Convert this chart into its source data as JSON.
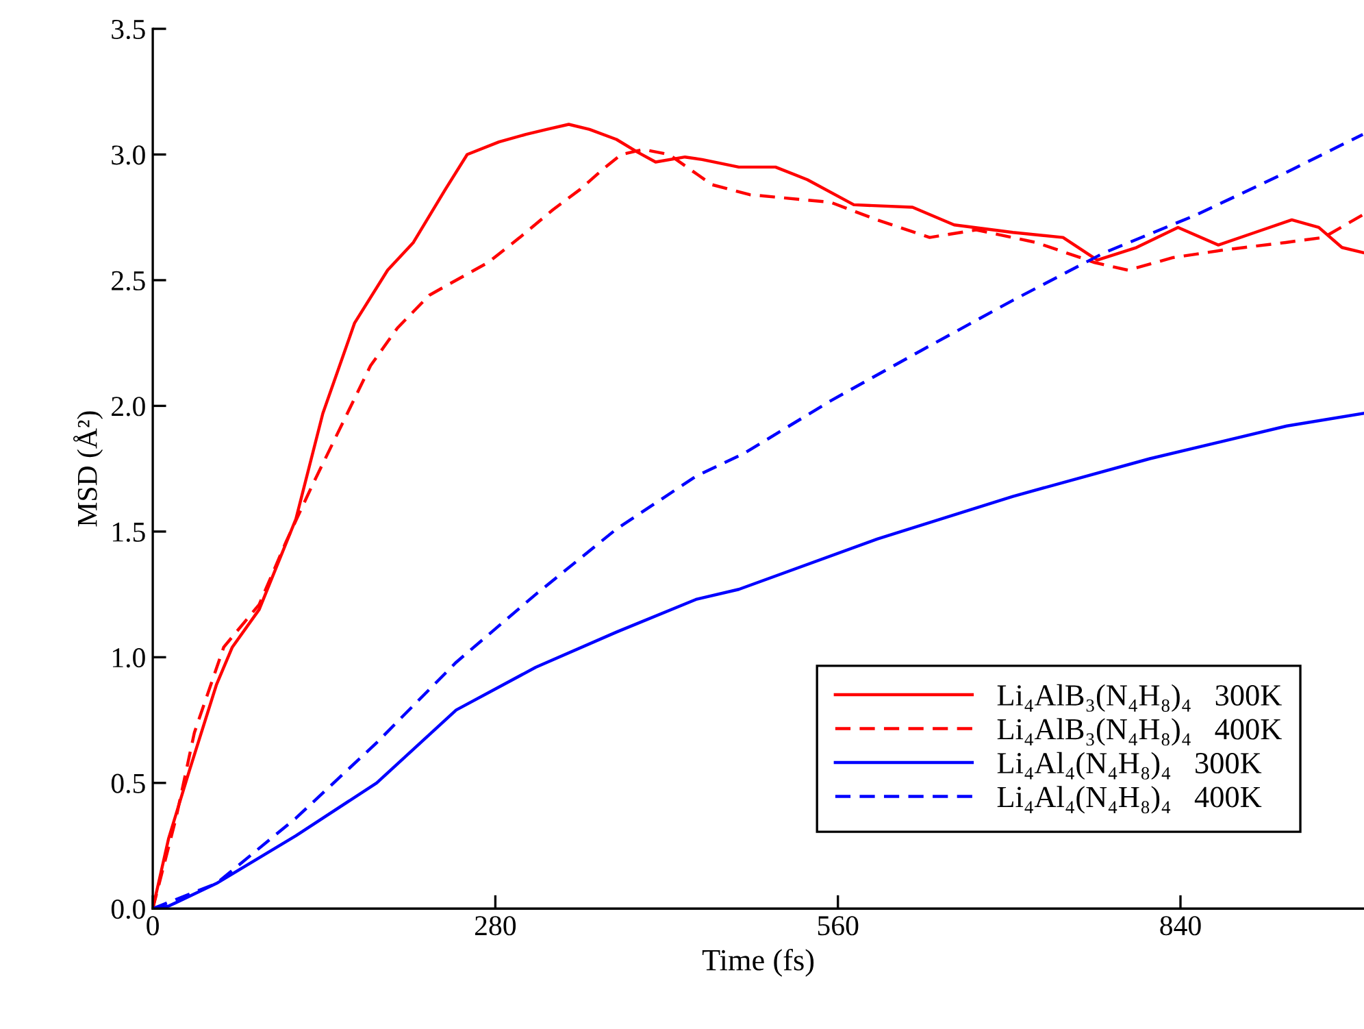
{
  "chart_data": {
    "type": "line",
    "xlabel": "Time (fs)",
    "ylabel": "MSD (Å²)",
    "xlim": [
      0,
      990
    ],
    "ylim": [
      0,
      3.5
    ],
    "xticks": [
      0,
      280,
      560,
      840
    ],
    "yticks": [
      {
        "value": 0,
        "label": "0.0"
      },
      {
        "value": 0.5,
        "label": "0.5"
      },
      {
        "value": 1,
        "label": "1.0"
      },
      {
        "value": 1.5,
        "label": "1.5"
      },
      {
        "value": 2,
        "label": "2.0"
      },
      {
        "value": 2.5,
        "label": "2.5"
      },
      {
        "value": 3,
        "label": "3.0"
      },
      {
        "value": 3.5,
        "label": "3.5"
      }
    ],
    "grid": false,
    "legend": "bottom right",
    "marker": "none",
    "series": [
      {
        "name": "Li₄AlB₃(N₄H₈)₄   300K",
        "color": "#ff0000",
        "line_style": "solid",
        "x": [
          0,
          13,
          30,
          52,
          65,
          87,
          117,
          139,
          165,
          192,
          213,
          239,
          257,
          283,
          305,
          322,
          340,
          357,
          379,
          396,
          411,
          435,
          449,
          479,
          509,
          535,
          573,
          621,
          655,
          703,
          744,
          772,
          804,
          838,
          871,
          901,
          931,
          953,
          972,
          989
        ],
        "values": [
          0,
          0.28,
          0.55,
          0.89,
          1.04,
          1.19,
          1.55,
          1.97,
          2.33,
          2.54,
          2.65,
          2.86,
          3.0,
          3.05,
          3.08,
          3.1,
          3.12,
          3.1,
          3.06,
          3.01,
          2.97,
          2.99,
          2.98,
          2.95,
          2.95,
          2.9,
          2.8,
          2.79,
          2.72,
          2.69,
          2.67,
          2.58,
          2.63,
          2.71,
          2.64,
          2.69,
          2.74,
          2.71,
          2.63,
          2.61
        ]
      },
      {
        "name": "Li₄AlB₃(N₄H₈)₄   400K",
        "color": "#ff0000",
        "line_style": "dashed",
        "x": [
          0,
          19,
          34,
          58,
          87,
          109,
          130,
          157,
          178,
          200,
          226,
          248,
          274,
          300,
          327,
          349,
          370,
          383,
          401,
          422,
          457,
          488,
          554,
          592,
          635,
          673,
          722,
          770,
          797,
          834,
          875,
          926,
          957,
          989
        ],
        "values": [
          0,
          0.36,
          0.7,
          1.04,
          1.21,
          1.46,
          1.68,
          1.95,
          2.16,
          2.31,
          2.44,
          2.5,
          2.57,
          2.67,
          2.78,
          2.86,
          2.95,
          3.0,
          3.02,
          3.0,
          2.88,
          2.84,
          2.81,
          2.74,
          2.67,
          2.7,
          2.65,
          2.57,
          2.54,
          2.59,
          2.62,
          2.65,
          2.67,
          2.76
        ]
      },
      {
        "name": "Li₄Al₄(N₄H₈)₄   300K",
        "color": "#0000ff",
        "line_style": "solid",
        "x": [
          0,
          13,
          52,
          117,
          183,
          248,
          313,
          379,
          444,
          479,
          592,
          703,
          815,
          927,
          989
        ],
        "values": [
          0,
          0.01,
          0.1,
          0.29,
          0.5,
          0.79,
          0.96,
          1.1,
          1.23,
          1.27,
          1.47,
          1.64,
          1.79,
          1.92,
          1.97
        ]
      },
      {
        "name": "Li₄Al₄(N₄H₈)₄   400K",
        "color": "#0000ff",
        "line_style": "dashed",
        "x": [
          0,
          52,
          117,
          183,
          248,
          313,
          379,
          444,
          483,
          554,
          628,
          703,
          778,
          853,
          927,
          989
        ],
        "values": [
          0,
          0.1,
          0.36,
          0.66,
          0.98,
          1.25,
          1.51,
          1.72,
          1.81,
          2.02,
          2.22,
          2.42,
          2.61,
          2.76,
          2.93,
          3.08
        ]
      }
    ]
  }
}
